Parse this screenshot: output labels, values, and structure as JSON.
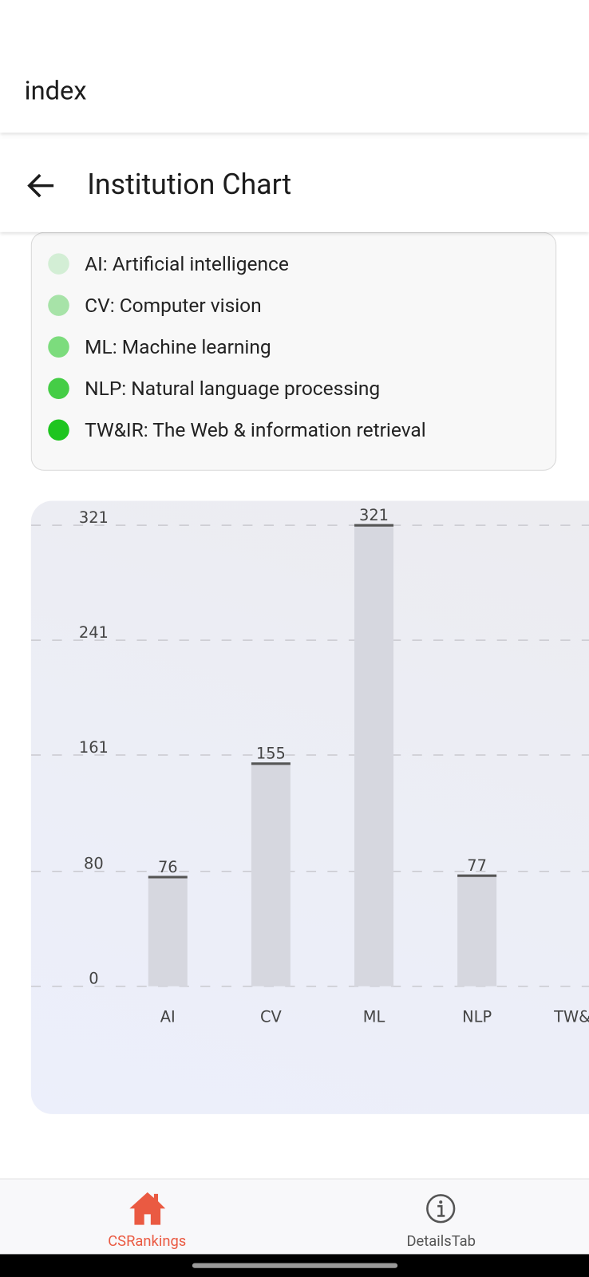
{
  "app_header": {
    "title": "index"
  },
  "nav_header": {
    "title": "Institution Chart"
  },
  "legend": {
    "items": [
      {
        "label": "AI: Artificial intelligence",
        "color": "#d3eed5"
      },
      {
        "label": "CV: Computer vision",
        "color": "#a7e3a8"
      },
      {
        "label": "ML: Machine learning",
        "color": "#7cdc7d"
      },
      {
        "label": "NLP: Natural language processing",
        "color": "#45cd46"
      },
      {
        "label": "TW&IR: The Web & information retrieval",
        "color": "#1ec51f"
      }
    ]
  },
  "chart_data": {
    "type": "bar",
    "categories": [
      "AI",
      "CV",
      "ML",
      "NLP",
      "TW&IR"
    ],
    "values": [
      76,
      155,
      321,
      77,
      null
    ],
    "ylim": [
      0,
      321
    ],
    "yticks": [
      0,
      80,
      161,
      241,
      321
    ],
    "grid": true,
    "color": "#d6d7df"
  },
  "tab_bar": {
    "tabs": [
      {
        "label": "CSRankings",
        "color": "#ea5a42"
      },
      {
        "label": "DetailsTab",
        "color": "#555555"
      }
    ]
  }
}
